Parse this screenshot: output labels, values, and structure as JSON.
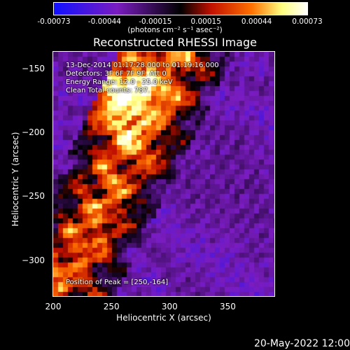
{
  "chart_data": {
    "type": "heatmap",
    "title": "Reconstructed RHESSI Image",
    "xlabel": "Heliocentric X (arcsec)",
    "ylabel": "Heliocentric Y (arcsec)",
    "xlim": [
      200,
      390
    ],
    "ylim": [
      -328,
      -137
    ],
    "x_ticks": [
      "200",
      "250",
      "300",
      "350"
    ],
    "y_ticks": [
      "-150",
      "-200",
      "-250",
      "-300"
    ],
    "colorbar": {
      "range": [
        -0.00073,
        0.00073
      ],
      "tick_labels": [
        "-0.00073",
        "-0.00044",
        "-0.00015",
        "0.00015",
        "0.00044",
        "0.00073"
      ],
      "unit_label": "(photons cm⁻² s⁻¹ asec⁻²)",
      "colors": [
        "#1010ff",
        "#7a1cc0",
        "#000000",
        "#c01000",
        "#ff7000",
        "#ffff80",
        "#ffffff"
      ]
    },
    "peak": [
      250,
      -164
    ],
    "annotations": [
      "13-Dec-2014 01:17:28.000 to 01:19:16.000",
      "Detectors: 3F 6F 7F 9F, Att 0",
      "Energy Range: 12.0 - 25.0 keV",
      "Clean    Total counts: 787.",
      "Position of Peak = [250,-164]"
    ]
  },
  "footer": {
    "date": "20-May-2022 12:00"
  }
}
